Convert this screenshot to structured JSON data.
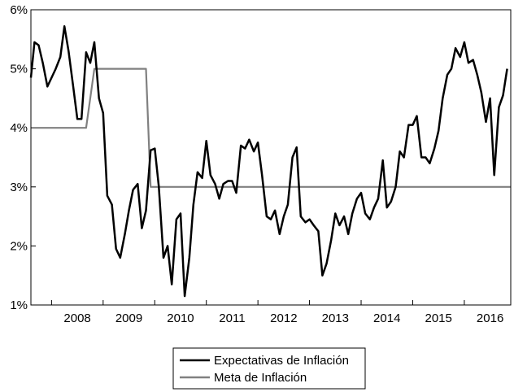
{
  "chart_data": {
    "type": "line",
    "title": "",
    "xlabel": "",
    "ylabel": "",
    "x_start": 2007.6,
    "x_end": 2016.9,
    "ylim": [
      1,
      6
    ],
    "y_ticks": [
      1,
      2,
      3,
      4,
      5,
      6
    ],
    "y_tick_labels": [
      "1%",
      "2%",
      "3%",
      "4%",
      "5%",
      "6%"
    ],
    "x_tick_boundaries": [
      2008,
      2009,
      2010,
      2011,
      2012,
      2013,
      2014,
      2015,
      2016
    ],
    "x_tick_labels": [
      "2008",
      "2009",
      "2010",
      "2011",
      "2012",
      "2013",
      "2014",
      "2015",
      "2016"
    ],
    "legend_position": "bottom-center",
    "series": [
      {
        "name": "Expectativas de Inflación",
        "color": "#000000",
        "values": [
          [
            2007.6,
            4.85
          ],
          [
            2007.67,
            5.45
          ],
          [
            2007.75,
            5.4
          ],
          [
            2007.83,
            5.1
          ],
          [
            2007.92,
            4.7
          ],
          [
            2008.0,
            4.85
          ],
          [
            2008.08,
            5.0
          ],
          [
            2008.17,
            5.2
          ],
          [
            2008.25,
            5.72
          ],
          [
            2008.33,
            5.3
          ],
          [
            2008.42,
            4.7
          ],
          [
            2008.5,
            4.15
          ],
          [
            2008.58,
            4.15
          ],
          [
            2008.67,
            5.28
          ],
          [
            2008.75,
            5.1
          ],
          [
            2008.83,
            5.45
          ],
          [
            2008.92,
            4.5
          ],
          [
            2009.0,
            4.25
          ],
          [
            2009.08,
            2.85
          ],
          [
            2009.17,
            2.7
          ],
          [
            2009.25,
            1.95
          ],
          [
            2009.33,
            1.8
          ],
          [
            2009.42,
            2.2
          ],
          [
            2009.5,
            2.6
          ],
          [
            2009.58,
            2.95
          ],
          [
            2009.67,
            3.05
          ],
          [
            2009.75,
            2.3
          ],
          [
            2009.83,
            2.6
          ],
          [
            2009.92,
            3.62
          ],
          [
            2010.0,
            3.65
          ],
          [
            2010.08,
            3.0
          ],
          [
            2010.17,
            1.8
          ],
          [
            2010.25,
            2.0
          ],
          [
            2010.33,
            1.35
          ],
          [
            2010.42,
            2.45
          ],
          [
            2010.5,
            2.55
          ],
          [
            2010.58,
            1.15
          ],
          [
            2010.67,
            1.8
          ],
          [
            2010.75,
            2.7
          ],
          [
            2010.83,
            3.25
          ],
          [
            2010.92,
            3.15
          ],
          [
            2011.0,
            3.78
          ],
          [
            2011.08,
            3.2
          ],
          [
            2011.17,
            3.05
          ],
          [
            2011.25,
            2.8
          ],
          [
            2011.33,
            3.05
          ],
          [
            2011.42,
            3.1
          ],
          [
            2011.5,
            3.1
          ],
          [
            2011.58,
            2.9
          ],
          [
            2011.67,
            3.7
          ],
          [
            2011.75,
            3.65
          ],
          [
            2011.83,
            3.8
          ],
          [
            2011.92,
            3.6
          ],
          [
            2012.0,
            3.75
          ],
          [
            2012.08,
            3.2
          ],
          [
            2012.17,
            2.5
          ],
          [
            2012.25,
            2.45
          ],
          [
            2012.33,
            2.6
          ],
          [
            2012.42,
            2.2
          ],
          [
            2012.5,
            2.5
          ],
          [
            2012.58,
            2.7
          ],
          [
            2012.67,
            3.5
          ],
          [
            2012.75,
            3.67
          ],
          [
            2012.83,
            2.5
          ],
          [
            2012.92,
            2.4
          ],
          [
            2013.0,
            2.45
          ],
          [
            2013.08,
            2.35
          ],
          [
            2013.17,
            2.25
          ],
          [
            2013.25,
            1.5
          ],
          [
            2013.33,
            1.7
          ],
          [
            2013.42,
            2.1
          ],
          [
            2013.5,
            2.55
          ],
          [
            2013.58,
            2.35
          ],
          [
            2013.67,
            2.5
          ],
          [
            2013.75,
            2.2
          ],
          [
            2013.83,
            2.55
          ],
          [
            2013.92,
            2.8
          ],
          [
            2014.0,
            2.9
          ],
          [
            2014.08,
            2.55
          ],
          [
            2014.17,
            2.45
          ],
          [
            2014.25,
            2.65
          ],
          [
            2014.33,
            2.8
          ],
          [
            2014.42,
            3.45
          ],
          [
            2014.5,
            2.65
          ],
          [
            2014.58,
            2.75
          ],
          [
            2014.67,
            3.0
          ],
          [
            2014.75,
            3.6
          ],
          [
            2014.83,
            3.5
          ],
          [
            2014.92,
            4.05
          ],
          [
            2015.0,
            4.05
          ],
          [
            2015.08,
            4.2
          ],
          [
            2015.17,
            3.5
          ],
          [
            2015.25,
            3.5
          ],
          [
            2015.33,
            3.4
          ],
          [
            2015.42,
            3.65
          ],
          [
            2015.5,
            3.95
          ],
          [
            2015.58,
            4.5
          ],
          [
            2015.67,
            4.9
          ],
          [
            2015.75,
            5.0
          ],
          [
            2015.83,
            5.35
          ],
          [
            2015.92,
            5.2
          ],
          [
            2016.0,
            5.45
          ],
          [
            2016.08,
            5.1
          ],
          [
            2016.17,
            5.15
          ],
          [
            2016.25,
            4.9
          ],
          [
            2016.33,
            4.6
          ],
          [
            2016.42,
            4.1
          ],
          [
            2016.5,
            4.5
          ],
          [
            2016.58,
            3.2
          ],
          [
            2016.67,
            4.35
          ],
          [
            2016.75,
            4.55
          ],
          [
            2016.83,
            5.0
          ]
        ]
      },
      {
        "name": "Meta de Inflación",
        "color": "#808080",
        "values": [
          [
            2007.6,
            4.0
          ],
          [
            2008.67,
            4.0
          ],
          [
            2008.83,
            5.0
          ],
          [
            2009.83,
            5.0
          ],
          [
            2009.92,
            3.0
          ],
          [
            2016.9,
            3.0
          ]
        ]
      }
    ]
  }
}
